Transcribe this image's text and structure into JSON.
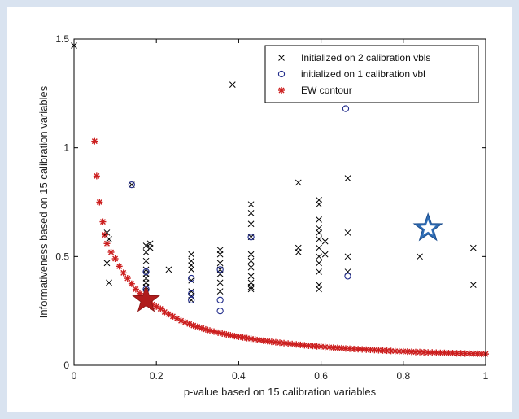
{
  "chart_data": {
    "type": "scatter",
    "xlabel": "p-value based on 15 calibration variables",
    "ylabel": "Informativeness based on 15 calibration variables",
    "xlim": [
      0,
      1
    ],
    "ylim": [
      0,
      1.5
    ],
    "xticks": [
      "0",
      "0.2",
      "0.4",
      "0.6",
      "0.8",
      "1"
    ],
    "yticks": [
      "0",
      "0.5",
      "1",
      "1.5"
    ],
    "grid": false,
    "legend_position": "top-right",
    "series": [
      {
        "name": "Initialized on 2 calibration vbls",
        "marker": "x",
        "color": "#000000",
        "points": [
          [
            0.0,
            1.47
          ],
          [
            0.08,
            0.61
          ],
          [
            0.085,
            0.58
          ],
          [
            0.08,
            0.47
          ],
          [
            0.085,
            0.38
          ],
          [
            0.14,
            0.83
          ],
          [
            0.175,
            0.55
          ],
          [
            0.175,
            0.52
          ],
          [
            0.175,
            0.48
          ],
          [
            0.175,
            0.44
          ],
          [
            0.175,
            0.42
          ],
          [
            0.175,
            0.4
          ],
          [
            0.175,
            0.38
          ],
          [
            0.175,
            0.36
          ],
          [
            0.175,
            0.33
          ],
          [
            0.185,
            0.56
          ],
          [
            0.185,
            0.54
          ],
          [
            0.23,
            0.44
          ],
          [
            0.285,
            0.51
          ],
          [
            0.285,
            0.48
          ],
          [
            0.285,
            0.46
          ],
          [
            0.285,
            0.44
          ],
          [
            0.285,
            0.39
          ],
          [
            0.285,
            0.34
          ],
          [
            0.285,
            0.32
          ],
          [
            0.285,
            0.3
          ],
          [
            0.355,
            0.53
          ],
          [
            0.355,
            0.51
          ],
          [
            0.355,
            0.47
          ],
          [
            0.355,
            0.44
          ],
          [
            0.355,
            0.42
          ],
          [
            0.355,
            0.38
          ],
          [
            0.355,
            0.34
          ],
          [
            0.385,
            1.29
          ],
          [
            0.43,
            0.74
          ],
          [
            0.43,
            0.7
          ],
          [
            0.43,
            0.65
          ],
          [
            0.43,
            0.59
          ],
          [
            0.43,
            0.51
          ],
          [
            0.43,
            0.48
          ],
          [
            0.43,
            0.45
          ],
          [
            0.43,
            0.41
          ],
          [
            0.43,
            0.38
          ],
          [
            0.43,
            0.36
          ],
          [
            0.43,
            0.35
          ],
          [
            0.545,
            0.84
          ],
          [
            0.545,
            0.54
          ],
          [
            0.545,
            0.52
          ],
          [
            0.595,
            0.76
          ],
          [
            0.595,
            0.74
          ],
          [
            0.595,
            0.67
          ],
          [
            0.595,
            0.63
          ],
          [
            0.595,
            0.61
          ],
          [
            0.595,
            0.58
          ],
          [
            0.595,
            0.54
          ],
          [
            0.595,
            0.5
          ],
          [
            0.595,
            0.47
          ],
          [
            0.595,
            0.43
          ],
          [
            0.595,
            0.37
          ],
          [
            0.595,
            0.35
          ],
          [
            0.61,
            0.57
          ],
          [
            0.61,
            0.51
          ],
          [
            0.665,
            0.86
          ],
          [
            0.665,
            0.61
          ],
          [
            0.665,
            0.5
          ],
          [
            0.665,
            0.43
          ],
          [
            0.84,
            0.5
          ],
          [
            0.97,
            0.54
          ],
          [
            0.97,
            0.37
          ]
        ]
      },
      {
        "name": "initialized on 1 calibration vbl",
        "marker": "o",
        "color": "#1f2a8a",
        "points": [
          [
            0.14,
            0.83
          ],
          [
            0.175,
            0.43
          ],
          [
            0.175,
            0.35
          ],
          [
            0.285,
            0.4
          ],
          [
            0.285,
            0.33
          ],
          [
            0.285,
            0.3
          ],
          [
            0.355,
            0.44
          ],
          [
            0.355,
            0.3
          ],
          [
            0.355,
            0.25
          ],
          [
            0.43,
            0.59
          ],
          [
            0.66,
            1.18
          ],
          [
            0.665,
            0.41
          ]
        ]
      },
      {
        "name": "EW contour",
        "marker": "*",
        "color": "#cc1f1f",
        "points": [
          [
            0.05,
            1.03
          ],
          [
            0.055,
            0.87
          ],
          [
            0.062,
            0.75
          ],
          [
            0.07,
            0.66
          ],
          [
            0.075,
            0.6
          ],
          [
            0.08,
            0.56
          ],
          [
            0.09,
            0.52
          ],
          [
            0.1,
            0.49
          ],
          [
            0.11,
            0.455
          ],
          [
            0.12,
            0.425
          ],
          [
            0.13,
            0.4
          ],
          [
            0.14,
            0.375
          ],
          [
            0.15,
            0.35
          ],
          [
            0.16,
            0.33
          ],
          [
            0.17,
            0.31
          ],
          [
            0.18,
            0.295
          ],
          [
            0.19,
            0.28
          ],
          [
            0.2,
            0.27
          ],
          [
            0.21,
            0.26
          ],
          [
            0.22,
            0.245
          ],
          [
            0.23,
            0.235
          ],
          [
            0.24,
            0.225
          ],
          [
            0.25,
            0.215
          ],
          [
            0.26,
            0.205
          ],
          [
            0.27,
            0.198
          ],
          [
            0.28,
            0.19
          ],
          [
            0.29,
            0.183
          ],
          [
            0.3,
            0.177
          ],
          [
            0.31,
            0.171
          ],
          [
            0.32,
            0.165
          ],
          [
            0.33,
            0.16
          ],
          [
            0.34,
            0.155
          ],
          [
            0.35,
            0.15
          ],
          [
            0.36,
            0.146
          ],
          [
            0.37,
            0.142
          ],
          [
            0.38,
            0.138
          ],
          [
            0.39,
            0.134
          ],
          [
            0.4,
            0.131
          ],
          [
            0.41,
            0.128
          ],
          [
            0.42,
            0.125
          ],
          [
            0.43,
            0.122
          ],
          [
            0.44,
            0.119
          ],
          [
            0.45,
            0.116
          ],
          [
            0.46,
            0.113
          ],
          [
            0.47,
            0.111
          ],
          [
            0.48,
            0.108
          ],
          [
            0.49,
            0.106
          ],
          [
            0.5,
            0.104
          ],
          [
            0.51,
            0.102
          ],
          [
            0.52,
            0.1
          ],
          [
            0.53,
            0.098
          ],
          [
            0.54,
            0.096
          ],
          [
            0.55,
            0.094
          ],
          [
            0.56,
            0.092
          ],
          [
            0.57,
            0.09
          ],
          [
            0.58,
            0.089
          ],
          [
            0.59,
            0.087
          ],
          [
            0.6,
            0.086
          ],
          [
            0.61,
            0.084
          ],
          [
            0.62,
            0.083
          ],
          [
            0.63,
            0.081
          ],
          [
            0.64,
            0.08
          ],
          [
            0.65,
            0.079
          ],
          [
            0.66,
            0.077
          ],
          [
            0.67,
            0.076
          ],
          [
            0.68,
            0.075
          ],
          [
            0.69,
            0.074
          ],
          [
            0.7,
            0.073
          ],
          [
            0.71,
            0.072
          ],
          [
            0.72,
            0.071
          ],
          [
            0.73,
            0.07
          ],
          [
            0.74,
            0.069
          ],
          [
            0.75,
            0.068
          ],
          [
            0.76,
            0.067
          ],
          [
            0.77,
            0.066
          ],
          [
            0.78,
            0.065
          ],
          [
            0.79,
            0.064
          ],
          [
            0.8,
            0.064
          ],
          [
            0.81,
            0.063
          ],
          [
            0.82,
            0.062
          ],
          [
            0.83,
            0.061
          ],
          [
            0.84,
            0.061
          ],
          [
            0.85,
            0.06
          ],
          [
            0.86,
            0.059
          ],
          [
            0.87,
            0.059
          ],
          [
            0.88,
            0.058
          ],
          [
            0.89,
            0.057
          ],
          [
            0.9,
            0.057
          ],
          [
            0.91,
            0.056
          ],
          [
            0.92,
            0.056
          ],
          [
            0.93,
            0.055
          ],
          [
            0.94,
            0.055
          ],
          [
            0.95,
            0.054
          ],
          [
            0.96,
            0.054
          ],
          [
            0.97,
            0.053
          ],
          [
            0.98,
            0.053
          ],
          [
            0.99,
            0.052
          ],
          [
            1.0,
            0.052
          ]
        ]
      }
    ],
    "highlights": [
      {
        "marker": "filled-star",
        "color": "#b01c1c",
        "x": 0.175,
        "y": 0.3
      },
      {
        "marker": "outlined-star",
        "color": "#2f6db5",
        "x": 0.86,
        "y": 0.63
      }
    ]
  }
}
